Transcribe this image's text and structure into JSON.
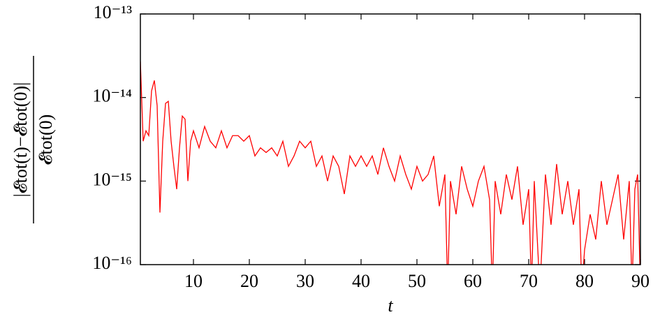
{
  "chart_data": {
    "type": "line",
    "xlabel": "t",
    "ylabel_numerator": "|𝓔tot(t)−𝓔tot(0)|",
    "ylabel_denominator": "𝓔tot(0)",
    "log_y": true,
    "xlim": [
      0.5,
      90
    ],
    "ylim": [
      1e-16,
      1e-13
    ],
    "xticks": [
      10,
      20,
      30,
      40,
      50,
      60,
      70,
      80,
      90
    ],
    "yticks": [
      {
        "value": 1e-16,
        "label": "10⁻¹⁶"
      },
      {
        "value": 1e-15,
        "label": "10⁻¹⁵"
      },
      {
        "value": 1e-14,
        "label": "10⁻¹⁴"
      },
      {
        "value": 1e-13,
        "label": "10⁻¹³"
      }
    ],
    "series": [
      {
        "color": "#ff0000",
        "x": [
          0.5,
          1,
          1.5,
          2,
          2.5,
          3,
          3.5,
          4,
          4.5,
          5,
          5.5,
          6,
          6.5,
          7,
          7.5,
          8,
          8.5,
          9,
          9.5,
          10,
          11,
          12,
          13,
          14,
          15,
          16,
          17,
          18,
          19,
          20,
          21,
          22,
          23,
          24,
          25,
          26,
          27,
          28,
          29,
          30,
          31,
          32,
          33,
          34,
          35,
          36,
          37,
          38,
          39,
          40,
          41,
          42,
          43,
          44,
          45,
          46,
          47,
          48,
          49,
          50,
          51,
          52,
          53,
          54,
          55,
          55.5,
          56,
          57,
          58,
          59,
          60,
          61,
          62,
          63,
          63.5,
          64,
          65,
          66,
          67,
          68,
          69,
          70,
          70.5,
          71,
          72,
          73,
          74,
          75,
          76,
          77,
          78,
          79,
          79.5,
          80,
          81,
          82,
          83,
          84,
          85,
          86,
          87,
          88,
          88.5,
          89,
          89.5,
          90
        ],
        "values": [
          2.7e-14,
          3e-15,
          4e-15,
          3.5e-15,
          1.2e-14,
          1.6e-14,
          8e-15,
          4.2e-16,
          3e-15,
          8.5e-15,
          9e-15,
          3e-15,
          1.5e-15,
          8e-16,
          2.5e-15,
          6e-15,
          5.5e-15,
          1e-15,
          3e-15,
          4e-15,
          2.5e-15,
          4.5e-15,
          3e-15,
          2.5e-15,
          4e-15,
          2.5e-15,
          3.5e-15,
          3.5e-15,
          3e-15,
          3.5e-15,
          2e-15,
          2.5e-15,
          2.2e-15,
          2.5e-15,
          2e-15,
          3e-15,
          1.5e-15,
          2e-15,
          3e-15,
          2.5e-15,
          3e-15,
          1.5e-15,
          2e-15,
          1e-15,
          2e-15,
          1.5e-15,
          7e-16,
          2e-15,
          1.5e-15,
          2e-15,
          1.5e-15,
          2e-15,
          1.2e-15,
          2.5e-15,
          1.5e-15,
          1e-15,
          2e-15,
          1.2e-15,
          8e-16,
          1.5e-15,
          1e-15,
          1.2e-15,
          2e-15,
          5e-16,
          1.2e-15,
          5e-17,
          1e-15,
          4e-16,
          1.5e-15,
          8e-16,
          5e-16,
          1e-15,
          1.5e-15,
          6e-16,
          5e-17,
          1e-15,
          4e-16,
          1.2e-15,
          6e-16,
          1.5e-15,
          3e-16,
          8e-16,
          5e-17,
          1e-15,
          5e-17,
          1.2e-15,
          3e-16,
          1.6e-15,
          4e-16,
          1e-15,
          3e-16,
          8e-16,
          5e-17,
          1.5e-16,
          4e-16,
          2e-16,
          1e-15,
          3e-16,
          6e-16,
          1.2e-15,
          2e-16,
          1e-15,
          5e-17,
          8e-16,
          1.2e-15,
          5e-17
        ]
      }
    ]
  }
}
